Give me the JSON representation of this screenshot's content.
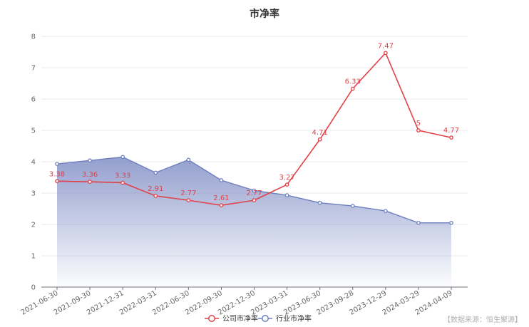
{
  "colors": {
    "company": "#e0424a",
    "industry": "#6f7fbe",
    "grid": "#e9e9e9",
    "axis": "#6e7079"
  },
  "source_text": "【数据来源：恒生聚源】",
  "chart_data": {
    "type": "line",
    "title": "市净率",
    "xlabel": "",
    "ylabel": "",
    "ylim": [
      0,
      8
    ],
    "yticks": [
      0,
      1,
      2,
      3,
      4,
      5,
      6,
      7,
      8
    ],
    "grid": true,
    "legend_position": "bottom-center",
    "categories": [
      "2021-06-30",
      "2021-09-30",
      "2021-12-31",
      "2022-03-31",
      "2022-06-30",
      "2022-09-30",
      "2022-12-30",
      "2023-03-31",
      "2023-06-30",
      "2023-09-28",
      "2023-12-29",
      "2024-03-29",
      "2024-04-09"
    ],
    "series": [
      {
        "name": "公司市净率",
        "values": [
          3.38,
          3.36,
          3.33,
          2.91,
          2.77,
          2.61,
          2.77,
          3.27,
          4.71,
          6.33,
          7.47,
          5,
          4.77
        ],
        "labels": [
          "3.38",
          "3.36",
          "3.33",
          "2.91",
          "2.77",
          "2.61",
          "2.77",
          "3.27",
          "4.71",
          "6.33",
          "7.47",
          "5",
          "4.77"
        ]
      },
      {
        "name": "行业市净率",
        "values": [
          3.93,
          4.04,
          4.15,
          3.65,
          4.06,
          3.41,
          3.08,
          2.93,
          2.69,
          2.59,
          2.43,
          2.05,
          2.05
        ]
      }
    ]
  }
}
